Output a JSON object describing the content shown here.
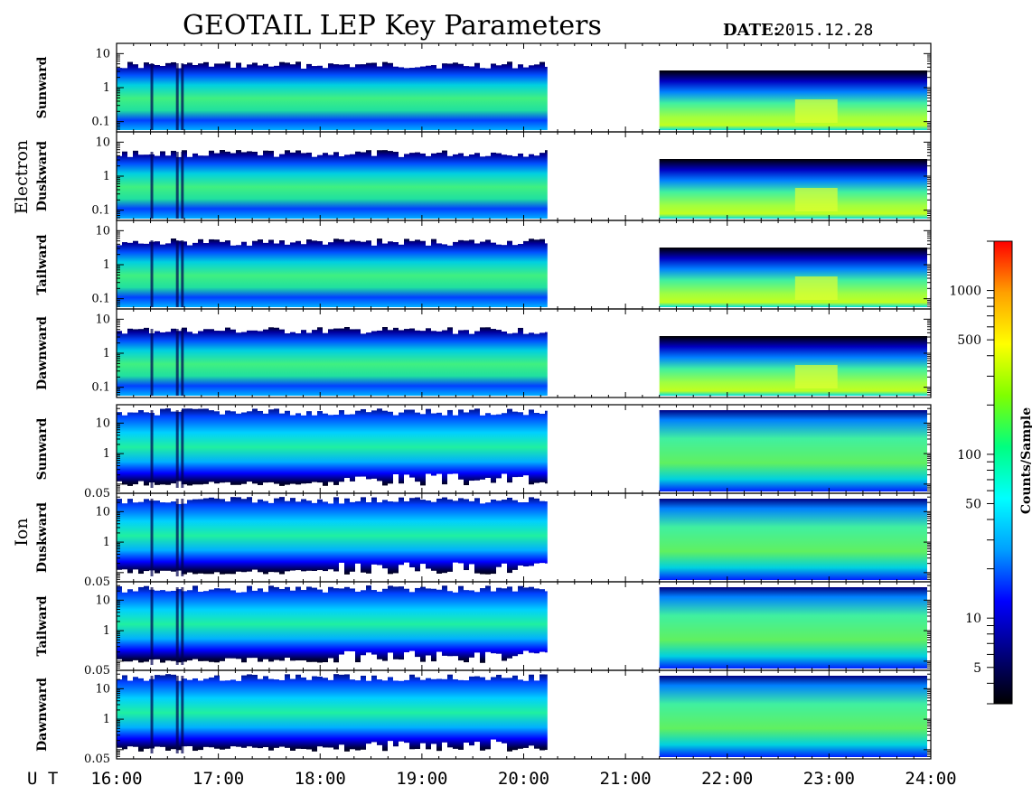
{
  "header": {
    "title": "GEOTAIL LEP Key Parameters",
    "date_label": "DATE:",
    "date_value": "2015.12.28"
  },
  "species": {
    "electron": "Electron",
    "ion": "Ion"
  },
  "colorbar": {
    "label": "Counts/Sample",
    "ticks": [
      "1000",
      "500",
      "100",
      "50",
      "10",
      "5"
    ],
    "colors": [
      "#000000",
      "#000080",
      "#0000ff",
      "#00a0ff",
      "#00ffff",
      "#00ff80",
      "#80ff00",
      "#ffff00",
      "#ffa000",
      "#ff0000"
    ]
  },
  "xaxis": {
    "prefix": "U T",
    "ticks": [
      "16:00",
      "17:00",
      "18:00",
      "19:00",
      "20:00",
      "21:00",
      "22:00",
      "23:00",
      "24:00"
    ]
  },
  "chart_data": {
    "type": "heatmap",
    "title": "GEOTAIL LEP Key Parameters",
    "date": "2015.12.28",
    "x": [
      "16:00",
      "17:00",
      "18:00",
      "19:00",
      "20:00",
      "21:00",
      "22:00",
      "23:00",
      "24:00"
    ],
    "xlim": [
      "16:00",
      "24:00"
    ],
    "data_gap": [
      "20:14",
      "21:20"
    ],
    "colorbar": {
      "label": "Counts/Sample",
      "scale": "log",
      "ticks": [
        5,
        10,
        50,
        100,
        500,
        1000
      ],
      "range": [
        3,
        2000
      ]
    },
    "panels": [
      {
        "species": "Electron",
        "direction": "Sunward",
        "yscale": "log",
        "ylim": [
          0.05,
          20
        ],
        "yticks": [
          "10",
          "1",
          "0.1"
        ]
      },
      {
        "species": "Electron",
        "direction": "Duskward",
        "yscale": "log",
        "ylim": [
          0.05,
          20
        ],
        "yticks": [
          "10",
          "1",
          "0.1"
        ]
      },
      {
        "species": "Electron",
        "direction": "Tailward",
        "yscale": "log",
        "ylim": [
          0.05,
          20
        ],
        "yticks": [
          "10",
          "1",
          "0.1"
        ]
      },
      {
        "species": "Electron",
        "direction": "Dawnward",
        "yscale": "log",
        "ylim": [
          0.05,
          20
        ],
        "yticks": [
          "10",
          "1",
          "0.1"
        ]
      },
      {
        "species": "Ion",
        "direction": "Sunward",
        "yscale": "log",
        "ylim": [
          0.05,
          40
        ],
        "yticks": [
          "10",
          "1",
          "0.05"
        ]
      },
      {
        "species": "Ion",
        "direction": "Duskward",
        "yscale": "log",
        "ylim": [
          0.05,
          40
        ],
        "yticks": [
          "10",
          "1",
          "0.05"
        ]
      },
      {
        "species": "Ion",
        "direction": "Tailward",
        "yscale": "log",
        "ylim": [
          0.05,
          40
        ],
        "yticks": [
          "10",
          "1",
          "0.05"
        ]
      },
      {
        "species": "Ion",
        "direction": "Dawnward",
        "yscale": "log",
        "ylim": [
          0.05,
          40
        ],
        "yticks": [
          "10",
          "1",
          "0.05"
        ]
      }
    ]
  }
}
